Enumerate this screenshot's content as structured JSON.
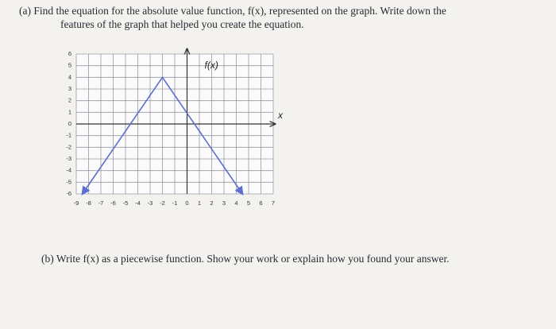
{
  "question_a": {
    "label": "(a)",
    "text_line_1": "Find the equation for the absolute value function, f(x), represented on the graph. Write down the",
    "text_line_2": "features of the graph that helped you create the equation."
  },
  "graph": {
    "function_label": "f(x)",
    "x_axis_label": "x",
    "xlim": [
      -9,
      7
    ],
    "ylim": [
      -6,
      6
    ],
    "xticks": [
      -9,
      -8,
      -7,
      -6,
      -5,
      -4,
      -3,
      -2,
      -1,
      0,
      1,
      2,
      3,
      4,
      5,
      6,
      7
    ],
    "yticks": [
      -6,
      -5,
      -4,
      -3,
      -2,
      -1,
      0,
      1,
      2,
      3,
      4,
      5,
      6
    ],
    "line": {
      "x": [
        -8.5,
        -2,
        4.5
      ],
      "y": [
        -6,
        4,
        -6
      ],
      "color": "#5b6fd0"
    }
  },
  "question_b": {
    "label": "(b)",
    "text": "Write f(x) as a piecewise function. Show your work or explain how you found your answer."
  }
}
